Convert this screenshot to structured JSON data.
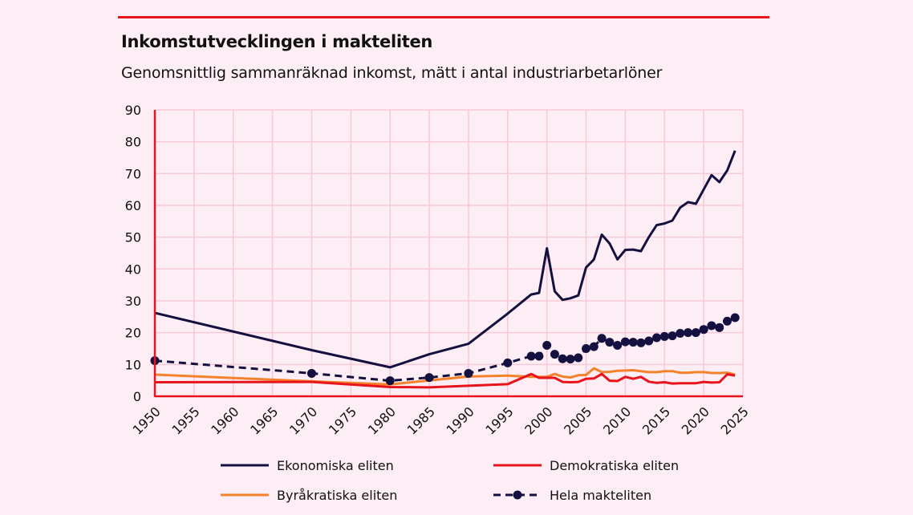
{
  "chart_data": {
    "type": "line",
    "title": "Inkomstutvecklingen i makteliten",
    "subtitle": "Genomsnittlig sammanräknad inkomst, mätt i antal industriarbetarlöner",
    "xlabel": "",
    "ylabel": "",
    "xlim": [
      1950,
      2025
    ],
    "ylim": [
      0,
      90
    ],
    "xticks": [
      1950,
      1955,
      1960,
      1965,
      1970,
      1975,
      1980,
      1985,
      1990,
      1995,
      2000,
      2005,
      2010,
      2015,
      2020,
      2025
    ],
    "yticks": [
      0,
      10,
      20,
      30,
      40,
      50,
      60,
      70,
      80,
      90
    ],
    "grid": true,
    "legend_position": "bottom",
    "x": [
      1950,
      1970,
      1980,
      1985,
      1990,
      1995,
      1998,
      1999,
      2000,
      2001,
      2002,
      2003,
      2004,
      2005,
      2006,
      2007,
      2008,
      2009,
      2010,
      2011,
      2012,
      2013,
      2014,
      2015,
      2016,
      2017,
      2018,
      2019,
      2020,
      2021,
      2022,
      2023,
      2024
    ],
    "series": [
      {
        "name": "Ekonomiska eliten",
        "color": "#14103f",
        "style": "solid",
        "values": [
          26.2,
          14.5,
          9.1,
          13.2,
          16.5,
          26,
          32,
          32.5,
          46.5,
          33,
          30.3,
          30.8,
          31.7,
          40.5,
          43,
          50.8,
          48,
          43,
          46,
          46.1,
          45.6,
          50,
          53.8,
          54.3,
          55.2,
          59.3,
          61,
          60.5,
          65,
          69.5,
          67.3,
          71,
          77.2
        ]
      },
      {
        "name": "Demokratiska eliten",
        "color": "#e8141c",
        "style": "solid",
        "values": [
          4.4,
          4.5,
          2.9,
          2.8,
          3.3,
          3.8,
          7,
          5.8,
          5.8,
          5.8,
          4.5,
          4.4,
          4.5,
          5.5,
          5.6,
          7,
          4.9,
          4.8,
          6.1,
          5.5,
          6.1,
          4.6,
          4.2,
          4.4,
          4,
          4.1,
          4.1,
          4.1,
          4.5,
          4.3,
          4.4,
          6.9,
          6.5
        ]
      },
      {
        "name": "Byråkratiska eliten",
        "color": "#f5822a",
        "style": "solid",
        "values": [
          6.8,
          4.7,
          3.7,
          5,
          6.2,
          6.5,
          6.1,
          6.1,
          6.1,
          7,
          6.2,
          5.9,
          6.6,
          6.7,
          8.8,
          7.6,
          7.7,
          8,
          8.1,
          8.2,
          7.9,
          7.6,
          7.6,
          7.9,
          7.9,
          7.4,
          7.4,
          7.6,
          7.6,
          7.3,
          7.3,
          7.4,
          6.8
        ]
      },
      {
        "name": "Hela makteliten",
        "color": "#14103f",
        "style": "dashed-markers",
        "values": [
          11.2,
          7.2,
          4.9,
          5.9,
          7.2,
          10.5,
          12.6,
          12.6,
          16,
          13.2,
          11.8,
          11.7,
          12.1,
          15,
          15.6,
          18.2,
          17,
          16,
          17.1,
          17,
          16.8,
          17.4,
          18.4,
          18.8,
          19,
          19.8,
          20,
          20,
          21,
          22.2,
          21.6,
          23.6,
          24.7
        ]
      }
    ]
  },
  "colors": {
    "background": "#fdeef5",
    "grid": "#f6c8d8",
    "axis": "#e8141c",
    "accent": "#e8141c"
  }
}
